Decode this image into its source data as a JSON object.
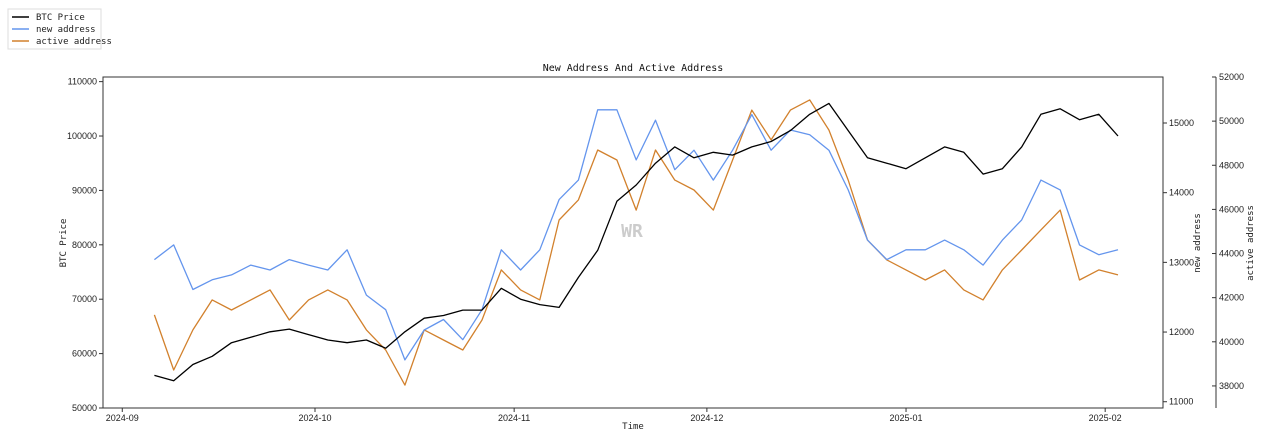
{
  "chart_data": {
    "type": "line",
    "title": "New Address And Active Address",
    "xlabel": "Time",
    "x_ticks": [
      "2024-09",
      "2024-10",
      "2024-11",
      "2024-12",
      "2025-01",
      "2025-02"
    ],
    "xlim": [
      "2024-08-29",
      "2025-02-10"
    ],
    "x_start": "2024-09-06",
    "x_step_days": 3,
    "legend": {
      "placement": "top-left",
      "entries": [
        "BTC Price",
        "new address",
        "active address"
      ]
    },
    "watermark": "WR",
    "axes": {
      "left": {
        "label": "BTC Price",
        "ylim": [
          50000,
          110850
        ],
        "ticks": [
          "50000",
          "60000",
          "70000",
          "80000",
          "90000",
          "100000",
          "110000"
        ]
      },
      "right1": {
        "label": "new address",
        "ylim": [
          10910,
          15660
        ],
        "ticks": [
          "11000",
          "12000",
          "13000",
          "14000",
          "15000"
        ]
      },
      "right2": {
        "label": "active address",
        "ylim": [
          37000,
          52000
        ],
        "ticks": [
          "38000",
          "40000",
          "42000",
          "44000",
          "46000",
          "48000",
          "50000",
          "52000"
        ]
      }
    },
    "series": [
      {
        "name": "BTC Price",
        "axis": "left",
        "color": "#000000",
        "values": [
          56000,
          55000,
          58000,
          59500,
          62000,
          63000,
          64000,
          64500,
          63500,
          62500,
          62000,
          62500,
          61000,
          64000,
          66500,
          67000,
          68000,
          68000,
          72000,
          70000,
          69000,
          68500,
          74000,
          79000,
          88000,
          91000,
          95000,
          98000,
          96000,
          97000,
          96500,
          98000,
          99000,
          101000,
          104000,
          106000,
          101000,
          96000,
          95000,
          94000,
          96000,
          98000,
          97000,
          93000,
          94000,
          98000,
          104000,
          105000,
          103000,
          104000,
          100000
        ]
      },
      {
        "name": "new address",
        "axis": "right1",
        "color": "#6495ED",
        "values": [
          13040,
          13250,
          12610,
          12750,
          12820,
          12960,
          12890,
          13040,
          12960,
          12890,
          13180,
          12530,
          12320,
          11600,
          12030,
          12180,
          11890,
          12320,
          13180,
          12890,
          13180,
          13900,
          14180,
          15190,
          15190,
          14470,
          15040,
          14330,
          14610,
          14180,
          14610,
          15120,
          14610,
          14900,
          14830,
          14610,
          14040,
          13320,
          13040,
          13180,
          13180,
          13320,
          13180,
          12960,
          13320,
          13610,
          14180,
          14040,
          13250,
          13110,
          13180
        ]
      },
      {
        "name": "active address",
        "axis": "right2",
        "color": "#D2812D",
        "values": [
          41220,
          38720,
          40540,
          41900,
          41440,
          41900,
          42350,
          40990,
          41900,
          42350,
          41900,
          40540,
          39630,
          38040,
          40540,
          40080,
          39630,
          40990,
          43260,
          42350,
          41900,
          45520,
          46430,
          48690,
          48240,
          45970,
          48690,
          47330,
          46880,
          45970,
          48240,
          50500,
          49150,
          50500,
          50960,
          49600,
          47330,
          44610,
          43710,
          43260,
          42800,
          43260,
          42350,
          41900,
          43260,
          44160,
          45070,
          45970,
          42800,
          43260,
          43030
        ]
      }
    ]
  }
}
